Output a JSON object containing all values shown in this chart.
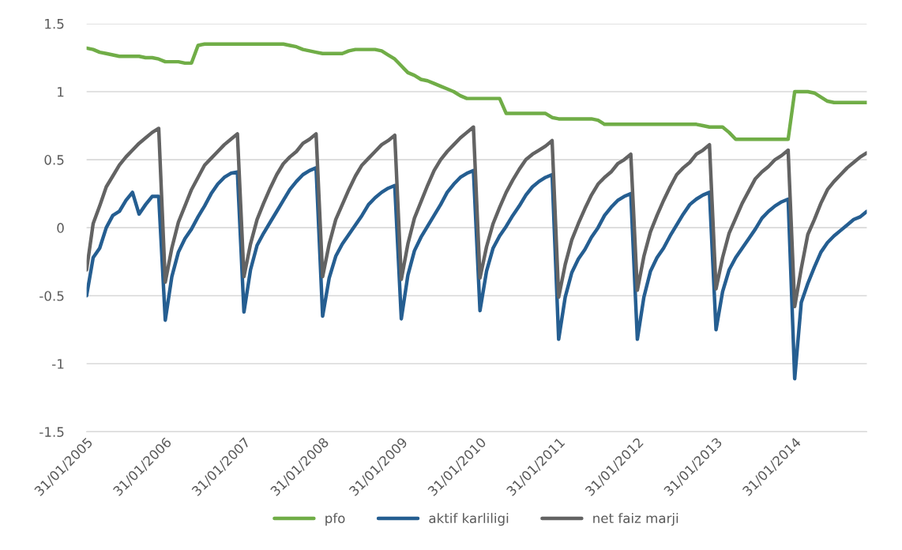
{
  "chart_data": {
    "type": "line",
    "categories": [
      "31/01/2005",
      null,
      null,
      null,
      null,
      null,
      null,
      null,
      null,
      null,
      null,
      null,
      "31/01/2006",
      null,
      null,
      null,
      null,
      null,
      null,
      null,
      null,
      null,
      null,
      null,
      "31/01/2007",
      null,
      null,
      null,
      null,
      null,
      null,
      null,
      null,
      null,
      null,
      null,
      "31/01/2008",
      null,
      null,
      null,
      null,
      null,
      null,
      null,
      null,
      null,
      null,
      null,
      "31/01/2009",
      null,
      null,
      null,
      null,
      null,
      null,
      null,
      null,
      null,
      null,
      null,
      "31/01/2010",
      null,
      null,
      null,
      null,
      null,
      null,
      null,
      null,
      null,
      null,
      null,
      "31/01/2011",
      null,
      null,
      null,
      null,
      null,
      null,
      null,
      null,
      null,
      null,
      null,
      "31/01/2012",
      null,
      null,
      null,
      null,
      null,
      null,
      null,
      null,
      null,
      null,
      null,
      "31/01/2013",
      null,
      null,
      null,
      null,
      null,
      null,
      null,
      null,
      null,
      null,
      null,
      "31/01/2014",
      null,
      null,
      null,
      null,
      null,
      null,
      null,
      null,
      null,
      null,
      null
    ],
    "series": [
      {
        "name": "pfo",
        "color": "#70ad47",
        "values": [
          1.32,
          1.31,
          1.29,
          1.28,
          1.27,
          1.26,
          1.26,
          1.26,
          1.26,
          1.25,
          1.25,
          1.24,
          1.22,
          1.22,
          1.22,
          1.21,
          1.21,
          1.34,
          1.35,
          1.35,
          1.35,
          1.35,
          1.35,
          1.35,
          1.35,
          1.35,
          1.35,
          1.35,
          1.35,
          1.35,
          1.35,
          1.34,
          1.33,
          1.31,
          1.3,
          1.29,
          1.28,
          1.28,
          1.28,
          1.28,
          1.3,
          1.31,
          1.31,
          1.31,
          1.31,
          1.3,
          1.27,
          1.24,
          1.19,
          1.14,
          1.12,
          1.09,
          1.08,
          1.06,
          1.04,
          1.02,
          1.0,
          0.97,
          0.95,
          0.95,
          0.95,
          0.95,
          0.95,
          0.95,
          0.84,
          0.84,
          0.84,
          0.84,
          0.84,
          0.84,
          0.84,
          0.81,
          0.8,
          0.8,
          0.8,
          0.8,
          0.8,
          0.8,
          0.79,
          0.76,
          0.76,
          0.76,
          0.76,
          0.76,
          0.76,
          0.76,
          0.76,
          0.76,
          0.76,
          0.76,
          0.76,
          0.76,
          0.76,
          0.76,
          0.75,
          0.74,
          0.74,
          0.74,
          0.7,
          0.65,
          0.65,
          0.65,
          0.65,
          0.65,
          0.65,
          0.65,
          0.65,
          0.65,
          1.0,
          1.0,
          1.0,
          0.99,
          0.96,
          0.93,
          0.92,
          0.92,
          0.92,
          0.92,
          0.92,
          0.92
        ]
      },
      {
        "name": "aktif karliligi",
        "color": "#255e91",
        "values": [
          -0.5,
          -0.22,
          -0.15,
          0.0,
          0.09,
          0.12,
          0.2,
          0.26,
          0.1,
          0.17,
          0.23,
          0.23,
          -0.68,
          -0.36,
          -0.18,
          -0.08,
          -0.01,
          0.08,
          0.16,
          0.25,
          0.32,
          0.37,
          0.4,
          0.41,
          -0.62,
          -0.31,
          -0.13,
          -0.04,
          0.04,
          0.12,
          0.2,
          0.28,
          0.34,
          0.39,
          0.42,
          0.44,
          -0.65,
          -0.37,
          -0.21,
          -0.12,
          -0.05,
          0.02,
          0.09,
          0.17,
          0.22,
          0.26,
          0.29,
          0.31,
          -0.67,
          -0.35,
          -0.17,
          -0.07,
          0.01,
          0.09,
          0.17,
          0.26,
          0.32,
          0.37,
          0.4,
          0.42,
          -0.61,
          -0.32,
          -0.15,
          -0.06,
          0.01,
          0.09,
          0.16,
          0.24,
          0.3,
          0.34,
          0.37,
          0.39,
          -0.82,
          -0.51,
          -0.33,
          -0.23,
          -0.16,
          -0.07,
          0.0,
          0.09,
          0.15,
          0.2,
          0.23,
          0.25,
          -0.82,
          -0.51,
          -0.32,
          -0.22,
          -0.15,
          -0.06,
          0.02,
          0.1,
          0.17,
          0.21,
          0.24,
          0.26,
          -0.75,
          -0.47,
          -0.31,
          -0.22,
          -0.15,
          -0.08,
          -0.01,
          0.07,
          0.12,
          0.16,
          0.19,
          0.21,
          -1.11,
          -0.55,
          -0.41,
          -0.29,
          -0.18,
          -0.11,
          -0.06,
          -0.02,
          0.02,
          0.06,
          0.08,
          0.12
        ]
      },
      {
        "name": "net faiz marji",
        "color": "#636363",
        "values": [
          -0.31,
          0.03,
          0.16,
          0.3,
          0.38,
          0.46,
          0.52,
          0.57,
          0.62,
          0.66,
          0.7,
          0.73,
          -0.4,
          -0.15,
          0.04,
          0.16,
          0.28,
          0.37,
          0.46,
          0.51,
          0.56,
          0.61,
          0.65,
          0.69,
          -0.36,
          -0.12,
          0.06,
          0.18,
          0.29,
          0.39,
          0.47,
          0.52,
          0.56,
          0.62,
          0.65,
          0.69,
          -0.36,
          -0.12,
          0.06,
          0.17,
          0.28,
          0.38,
          0.46,
          0.51,
          0.56,
          0.61,
          0.64,
          0.68,
          -0.38,
          -0.12,
          0.07,
          0.19,
          0.31,
          0.42,
          0.5,
          0.56,
          0.61,
          0.66,
          0.7,
          0.74,
          -0.37,
          -0.14,
          0.03,
          0.15,
          0.26,
          0.35,
          0.43,
          0.5,
          0.54,
          0.57,
          0.6,
          0.64,
          -0.51,
          -0.27,
          -0.09,
          0.03,
          0.14,
          0.24,
          0.32,
          0.37,
          0.41,
          0.47,
          0.5,
          0.54,
          -0.46,
          -0.21,
          -0.03,
          0.09,
          0.2,
          0.3,
          0.39,
          0.44,
          0.48,
          0.54,
          0.57,
          0.61,
          -0.45,
          -0.22,
          -0.04,
          0.07,
          0.18,
          0.27,
          0.36,
          0.41,
          0.45,
          0.5,
          0.53,
          0.57,
          -0.58,
          -0.3,
          -0.05,
          0.06,
          0.18,
          0.28,
          0.34,
          0.39,
          0.44,
          0.48,
          0.52,
          0.55
        ]
      }
    ],
    "ylim": [
      -1.5,
      1.5
    ],
    "yticks": [
      -1.5,
      -1,
      -0.5,
      0,
      0.5,
      1,
      1.5
    ],
    "grid": "y",
    "legend": "bottom",
    "marker": "none",
    "line_style": "solid"
  }
}
